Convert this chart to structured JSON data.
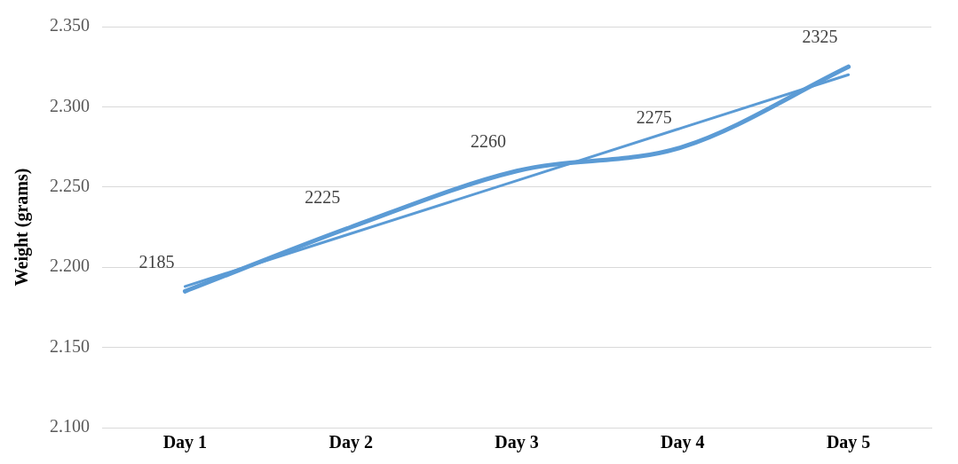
{
  "chart_data": {
    "type": "line",
    "ylabel": "Weight (grams)",
    "categories": [
      "Day 1",
      "Day 2",
      "Day 3",
      "Day 4",
      "Day 5"
    ],
    "series": [
      {
        "color": "#5b9bd5",
        "values": [
          2185,
          2225,
          2260,
          2275,
          2325
        ],
        "value_labels": [
          "2185",
          "2225",
          "2260",
          "2275",
          "2325"
        ]
      },
      {
        "type": "line",
        "color": "#5b9bd5",
        "values": [
          2188,
          2221,
          2254,
          2287,
          2320
        ]
      }
    ],
    "ylim": [
      2100,
      2350
    ],
    "yticks": [
      {
        "value": 2100,
        "label": "2.100"
      },
      {
        "value": 2150,
        "label": "2.150"
      },
      {
        "value": 2200,
        "label": "2.200"
      },
      {
        "value": 2250,
        "label": "2.250"
      },
      {
        "value": 2300,
        "label": "2.300"
      },
      {
        "value": 2350,
        "label": "2.350"
      }
    ],
    "grid": "y",
    "legend": false,
    "marker": "none",
    "line_style": "solid"
  }
}
